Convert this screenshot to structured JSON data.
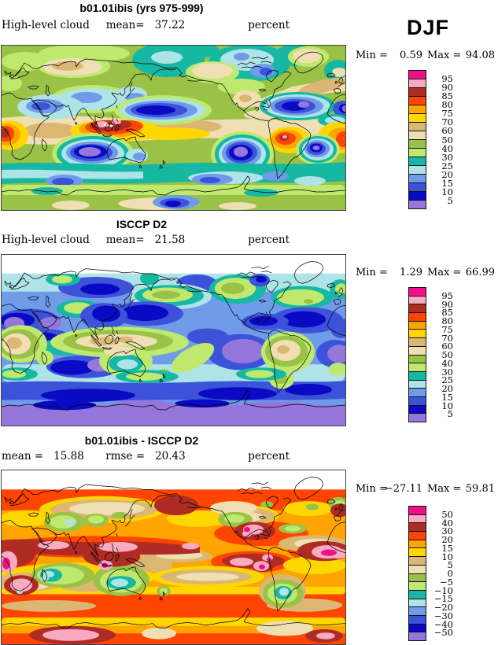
{
  "figure": {
    "season": "DJF",
    "units": "percent",
    "variable": "High-level cloud"
  },
  "palette": [
    "#F20D8A",
    "#F8ABC0",
    "#AE2C24",
    "#FF4500",
    "#FFA400",
    "#FFD700",
    "#DBB773",
    "#EFDFB2",
    "#99C246",
    "#BEE96E",
    "#16B8A3",
    "#AEE3E8",
    "#6F9BE8",
    "#3C52D9",
    "#0A0AC4",
    "#9577DB"
  ],
  "panels": [
    {
      "title": "b01.01ibis (yrs 975-999)",
      "var_label": "High-level cloud",
      "mean_label": "mean=",
      "mean_value": "37.22",
      "units": "percent",
      "min_label": "Min =",
      "min_value": "0.59",
      "max_label": "Max =",
      "max_value": "94.08",
      "levels": [
        "95",
        "90",
        "85",
        "80",
        "75",
        "70",
        "60",
        "50",
        "40",
        "30",
        "25",
        "20",
        "15",
        "10",
        "5"
      ]
    },
    {
      "title": "ISCCP D2",
      "var_label": "High-level cloud",
      "mean_label": "mean=",
      "mean_value": "21.58",
      "units": "percent",
      "min_label": "Min =",
      "min_value": "1.29",
      "max_label": "Max =",
      "max_value": "66.99",
      "levels": [
        "95",
        "90",
        "85",
        "80",
        "75",
        "70",
        "60",
        "50",
        "40",
        "30",
        "25",
        "20",
        "15",
        "10",
        "5"
      ]
    },
    {
      "title": "b01.01ibis - ISCCP D2",
      "mean_label": "mean =",
      "mean_value": "15.88",
      "rmse_label": "rmse =",
      "rmse_value": "20.43",
      "units": "percent",
      "min_label": "Min =",
      "min_value": "−27.11",
      "max_label": "Max =",
      "max_value": "59.81",
      "levels": [
        "50",
        "40",
        "30",
        "20",
        "15",
        "10",
        "5",
        "0",
        "−5",
        "−10",
        "−15",
        "−20",
        "−30",
        "−40",
        "−50"
      ]
    }
  ],
  "chart_data": [
    {
      "type": "filled-contour-map",
      "panel": "model",
      "title": "b01.01ibis (yrs 975-999)",
      "variable": "High-level cloud",
      "season": "DJF",
      "units": "percent",
      "projection": "equirectangular global, Pacific-centered (left edge ~0E)",
      "mean": 37.22,
      "min": 0.59,
      "max": 94.08,
      "contour_levels": [
        5,
        10,
        15,
        20,
        25,
        30,
        40,
        50,
        60,
        70,
        75,
        80,
        85,
        90,
        95
      ],
      "legend_position": "right",
      "notable_features": "Maxima >90 over Maritime Continent, central Africa and Amazon; minima <10 with <5 cores over subtropical S Indian, SE Pacific, S Atlantic and N Atlantic oceans; 40-50 background over mid/high latitudes"
    },
    {
      "type": "filled-contour-map",
      "panel": "observations",
      "title": "ISCCP D2",
      "variable": "High-level cloud",
      "season": "DJF",
      "units": "percent",
      "projection": "equirectangular global, Pacific-centered (left edge ~0E)",
      "mean": 21.58,
      "min": 1.29,
      "max": 66.99,
      "contour_levels": [
        5,
        10,
        15,
        20,
        25,
        30,
        40,
        50,
        60,
        70,
        75,
        80,
        85,
        90,
        95
      ],
      "legend_position": "right",
      "notable_features": "No data (white) poleward of ~70N; mostly 10-25 over oceans; 40-60 along ITCZ, Africa, Amazon and Indonesia; <5 over Sahara/Arabia, SE Pacific, S Atlantic and Antarctic band"
    },
    {
      "type": "filled-contour-map",
      "panel": "difference",
      "title": "b01.01ibis - ISCCP D2",
      "variable": "High-level cloud difference",
      "season": "DJF",
      "units": "percent",
      "mean": 15.88,
      "rmse": 20.43,
      "min": -27.11,
      "max": 59.81,
      "contour_levels": [
        -50,
        -40,
        -30,
        -20,
        -15,
        -10,
        -5,
        0,
        5,
        10,
        15,
        20,
        30,
        40,
        50
      ],
      "legend_position": "right",
      "notable_features": "Widespread positive bias 10-40 (orange/red); >40-50 bands along 10-20N, Caribbean, Peru, tropical S Atlantic and Indonesia; negative pockets (-5 to -20) over southern Africa, Australia, Argentina and central Asia; white band poleward of ~70N"
    }
  ]
}
